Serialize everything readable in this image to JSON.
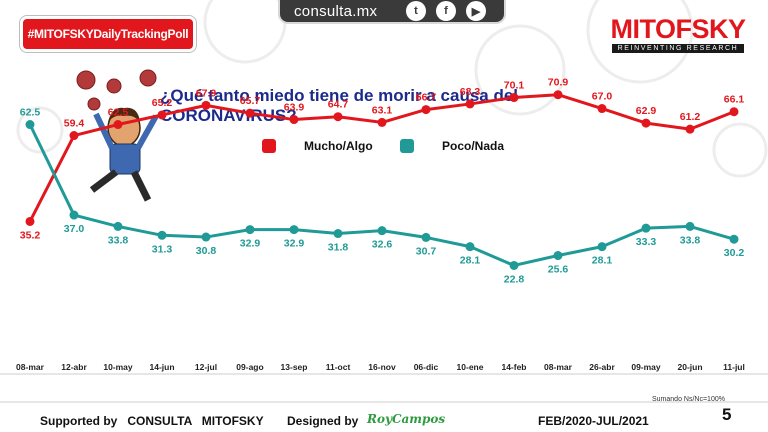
{
  "header": {
    "site": "consulta.mx",
    "social_icons": [
      "twitter-icon",
      "facebook-icon",
      "youtube-icon"
    ],
    "hashtag": "#MITOFSKYDailyTrackingPoll",
    "brand_name": "MITOFSKY",
    "brand_tagline": "REINVENTING RESEARCH"
  },
  "question": "¿Qué tanto miedo tiene de morir a causa del CORONAVIRUS?",
  "legend": [
    {
      "label": "Mucho/Algo",
      "color": "#e2171d"
    },
    {
      "label": "Poco/Nada",
      "color": "#1f9a96"
    }
  ],
  "chart_data": {
    "type": "line",
    "categories": [
      "08-mar",
      "12-abr",
      "10-may",
      "14-jun",
      "12-jul",
      "09-ago",
      "13-sep",
      "11-oct",
      "16-nov",
      "06-dic",
      "10-ene",
      "14-feb",
      "08-mar",
      "26-abr",
      "09-may",
      "20-jun",
      "11-jul"
    ],
    "series": [
      {
        "name": "Mucho/Algo",
        "color": "#e2171d",
        "values": [
          35.2,
          59.4,
          62.5,
          65.2,
          67.9,
          65.7,
          63.9,
          64.7,
          63.1,
          66.7,
          68.3,
          70.1,
          70.9,
          67.0,
          62.9,
          61.2,
          66.1
        ]
      },
      {
        "name": "Poco/Nada",
        "color": "#1f9a96",
        "values": [
          62.5,
          37.0,
          33.8,
          31.3,
          30.8,
          32.9,
          32.9,
          31.8,
          32.6,
          30.7,
          28.1,
          22.8,
          25.6,
          28.1,
          33.3,
          33.8,
          30.2
        ]
      }
    ],
    "data_labels": true,
    "grid": false
  },
  "footer": {
    "supported": "Supported by",
    "supporter": "CONSULTA   MITOFSKY",
    "designed": "Designed by",
    "designer": "RoyCampos",
    "period": "FEB/2020-JUL/2021",
    "note": "Sumando Ns/Nc=100%",
    "page": "5"
  }
}
